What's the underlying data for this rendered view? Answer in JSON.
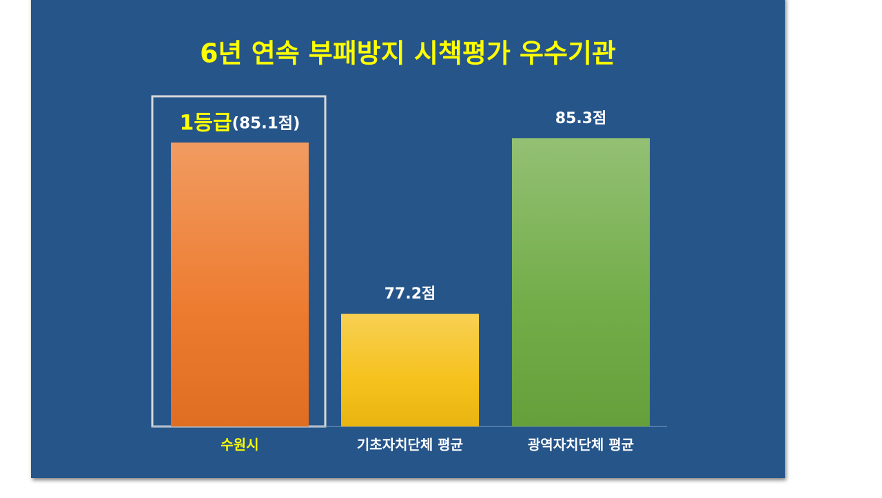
{
  "chart_data": {
    "type": "bar",
    "title": "6년 연속 부패방지 시책평가 우수기관",
    "categories": [
      "수원시",
      "기초자치단체 평균",
      "광역자치단체 평균"
    ],
    "values": [
      85.1,
      77.2,
      85.3
    ],
    "value_labels": [
      "(85.1점)",
      "77.2점",
      "85.3점"
    ],
    "annotation": "1등급",
    "colors": [
      "#ec7424",
      "#f5be10",
      "#6aa83e"
    ],
    "ylim": [
      72,
      86
    ]
  }
}
